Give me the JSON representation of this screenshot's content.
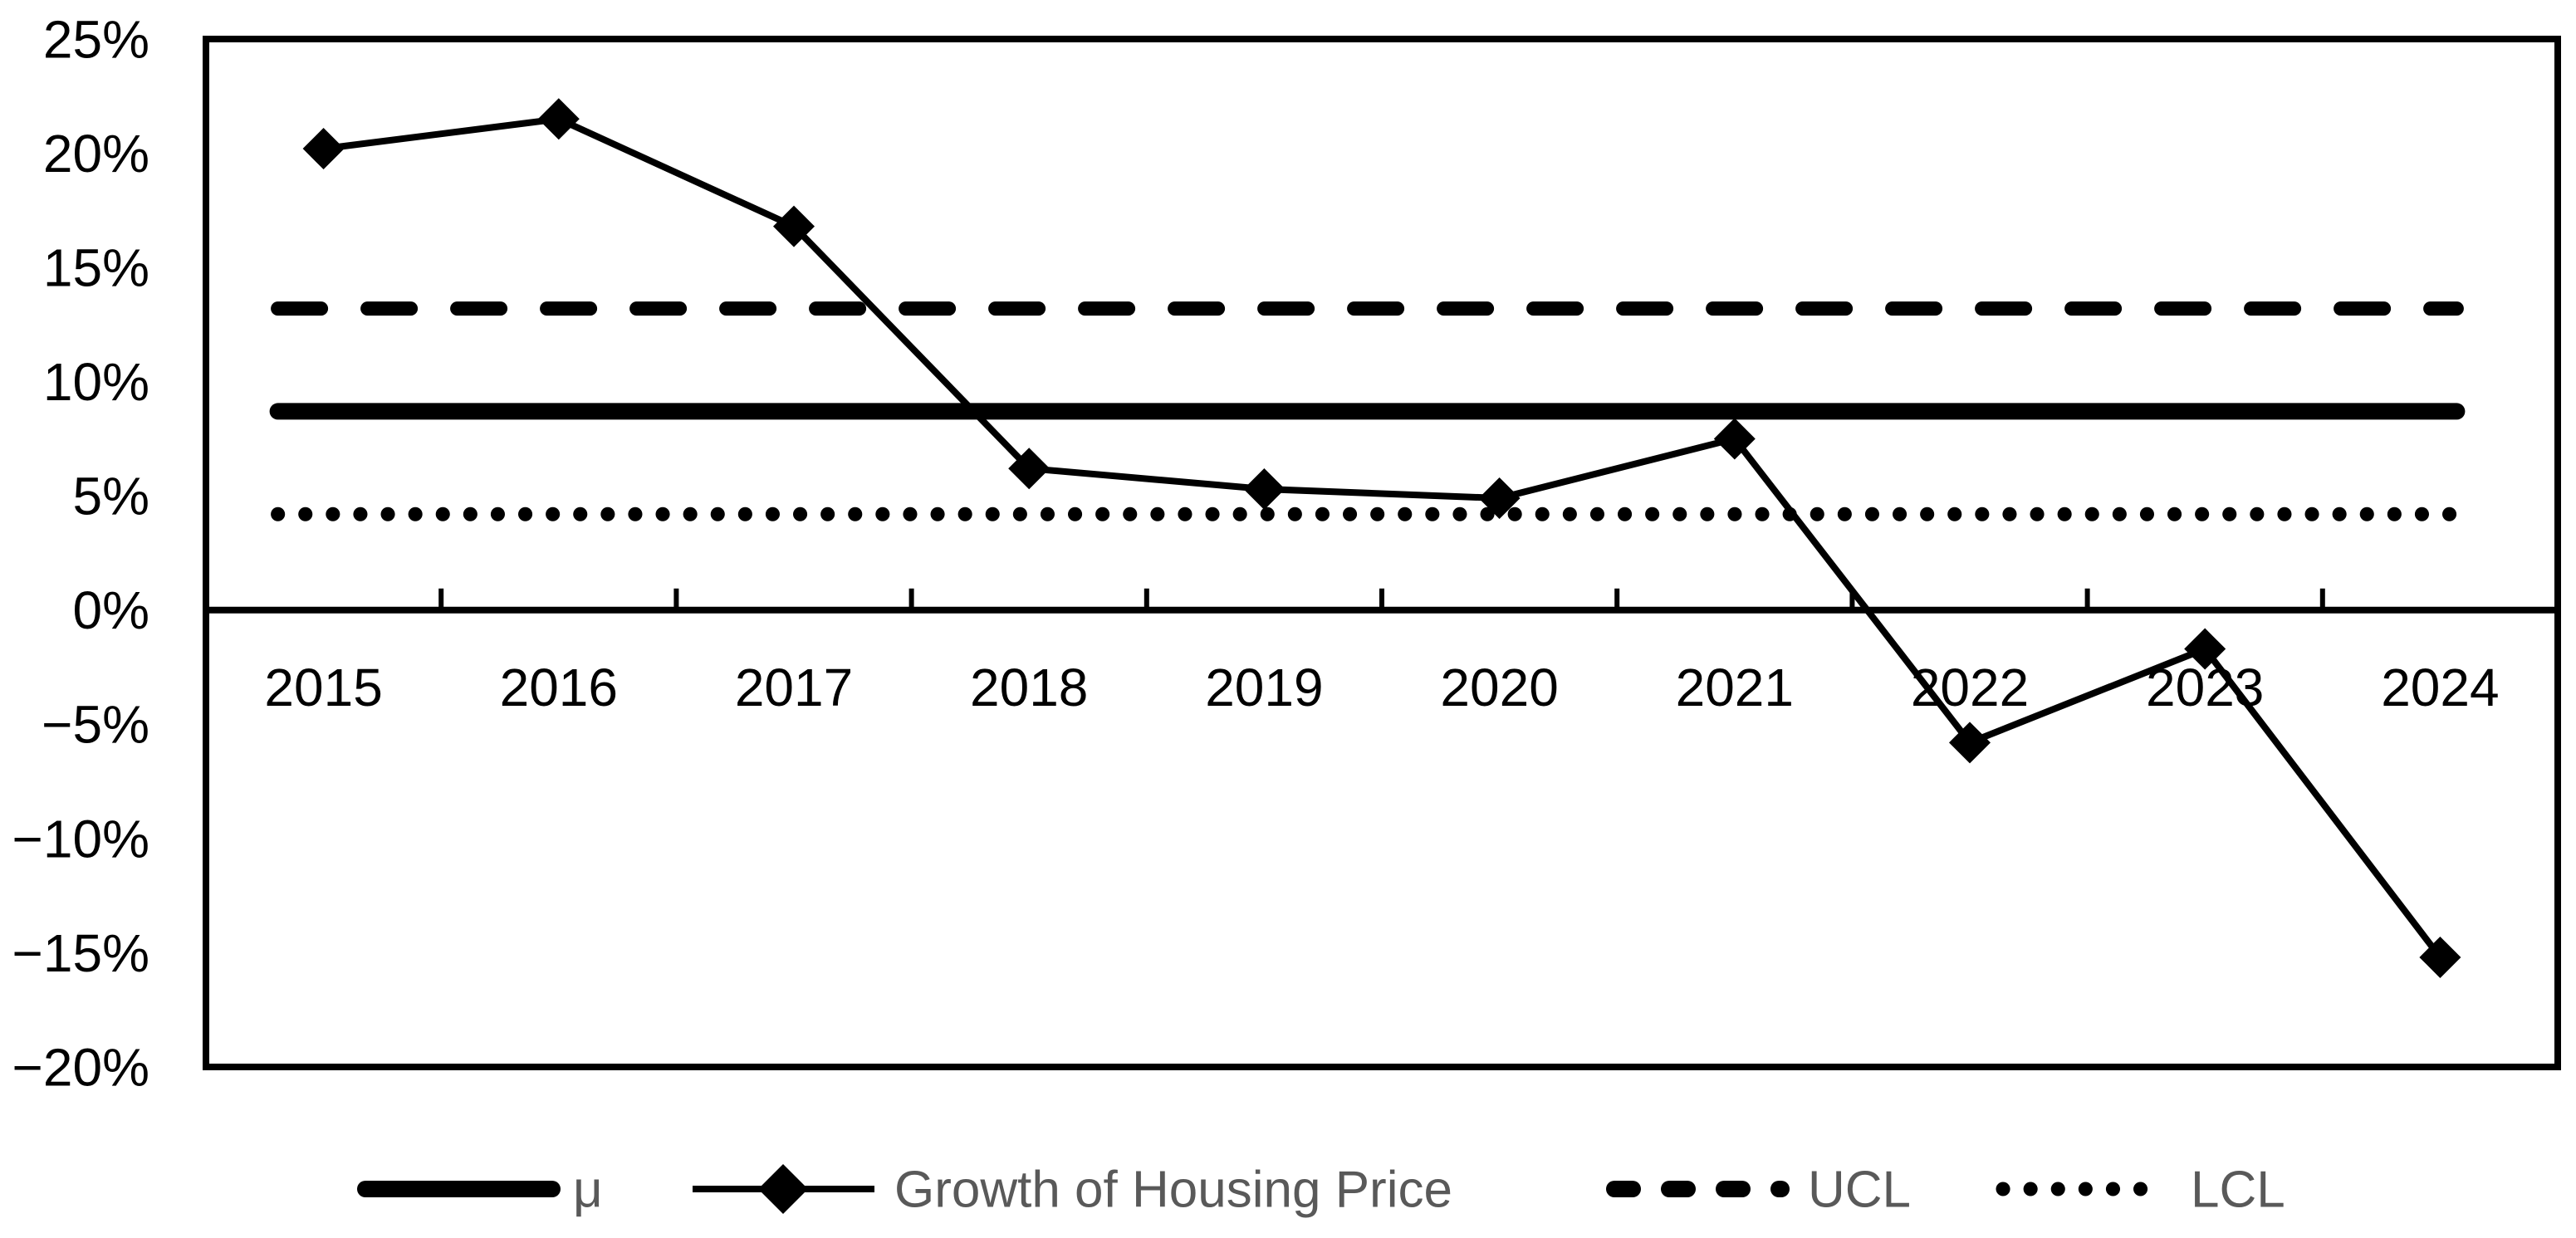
{
  "chart_data": {
    "type": "line",
    "title": "",
    "categories": [
      "2015",
      "2016",
      "2017",
      "2018",
      "2019",
      "2020",
      "2021",
      "2022",
      "2023",
      "2024"
    ],
    "series": [
      {
        "name": "μ",
        "kind": "hline",
        "value": 8.7,
        "style": "solid-thick"
      },
      {
        "name": "Growth of Housing Price",
        "kind": "line",
        "marker": "diamond",
        "values": [
          20.2,
          21.5,
          16.8,
          6.2,
          5.3,
          4.9,
          7.5,
          -5.8,
          -1.7,
          -15.2
        ]
      },
      {
        "name": "UCL",
        "kind": "hline",
        "value": 13.2,
        "style": "dashed"
      },
      {
        "name": "LCL",
        "kind": "hline",
        "value": 4.2,
        "style": "dotted"
      }
    ],
    "xlabel": "",
    "ylabel": "",
    "ylim": [
      -20,
      25
    ],
    "ytick_step": 5,
    "ytick_labels": [
      "25%",
      "20%",
      "15%",
      "10%",
      "5%",
      "0%",
      "−5%",
      "−10%",
      "−15%",
      "−20%"
    ],
    "grid": false,
    "legend_position": "bottom",
    "axis_ticks": "category boundaries, inside, on zero line"
  },
  "colors": {
    "ink": "#000000",
    "legend_text": "#595959",
    "background": "#ffffff"
  }
}
